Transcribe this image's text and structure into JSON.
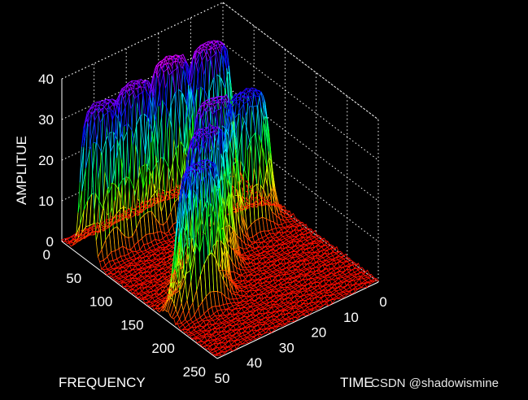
{
  "chart_data": {
    "type": "surface-3d",
    "xlabel": "FREQUENCY",
    "ylabel": "TIME",
    "zlabel": "AMPLITUE",
    "frequency_ticks": [
      0,
      50,
      100,
      150,
      200,
      250
    ],
    "time_ticks": [
      0,
      10,
      20,
      30,
      40,
      50
    ],
    "amplitude_ticks": [
      0,
      10,
      20,
      30,
      40
    ],
    "xlim": [
      0,
      250
    ],
    "ylim": [
      0,
      50
    ],
    "zlim": [
      0,
      40
    ],
    "grid": true,
    "colormap": "hsv",
    "peaks": [
      {
        "frequency": 40,
        "time": 45,
        "amplitude": 36
      },
      {
        "frequency": 40,
        "time": 35,
        "amplitude": 37
      },
      {
        "frequency": 40,
        "time": 24,
        "amplitude": 39
      },
      {
        "frequency": 40,
        "time": 12,
        "amplitude": 38
      },
      {
        "frequency": 170,
        "time": 40,
        "amplitude": 34
      },
      {
        "frequency": 140,
        "time": 32,
        "amplitude": 36
      },
      {
        "frequency": 110,
        "time": 24,
        "amplitude": 37
      },
      {
        "frequency": 100,
        "time": 12,
        "amplitude": 33
      }
    ]
  },
  "watermark": "CSDN @shadowismine"
}
